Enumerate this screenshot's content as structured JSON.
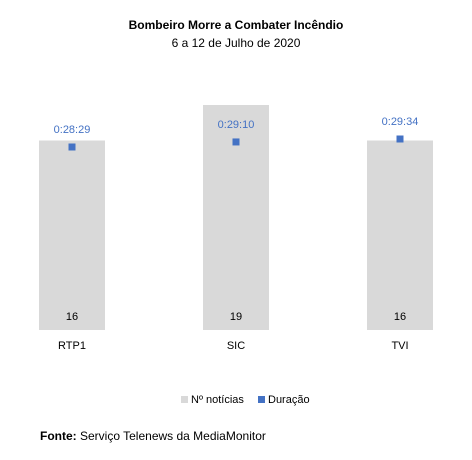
{
  "chart_data": {
    "type": "bar",
    "title": "Bombeiro Morre a Combater Incêndio",
    "subtitle": "6 a 12 de Julho de 2020",
    "categories": [
      "RTP1",
      "SIC",
      "TVI"
    ],
    "series": [
      {
        "name": "Nº notícias",
        "type": "bar",
        "values": [
          16,
          19,
          16
        ],
        "color": "#d9d9d9"
      },
      {
        "name": "Duração",
        "type": "scatter",
        "values": [
          "0:28:29",
          "0:29:10",
          "0:29:34"
        ],
        "seconds": [
          1709,
          1750,
          1774
        ],
        "color": "#4472c4"
      }
    ],
    "legend_position": "bottom",
    "grid": false
  },
  "source": {
    "label": "Fonte:",
    "text": "Serviço Telenews da MediaMonitor"
  }
}
